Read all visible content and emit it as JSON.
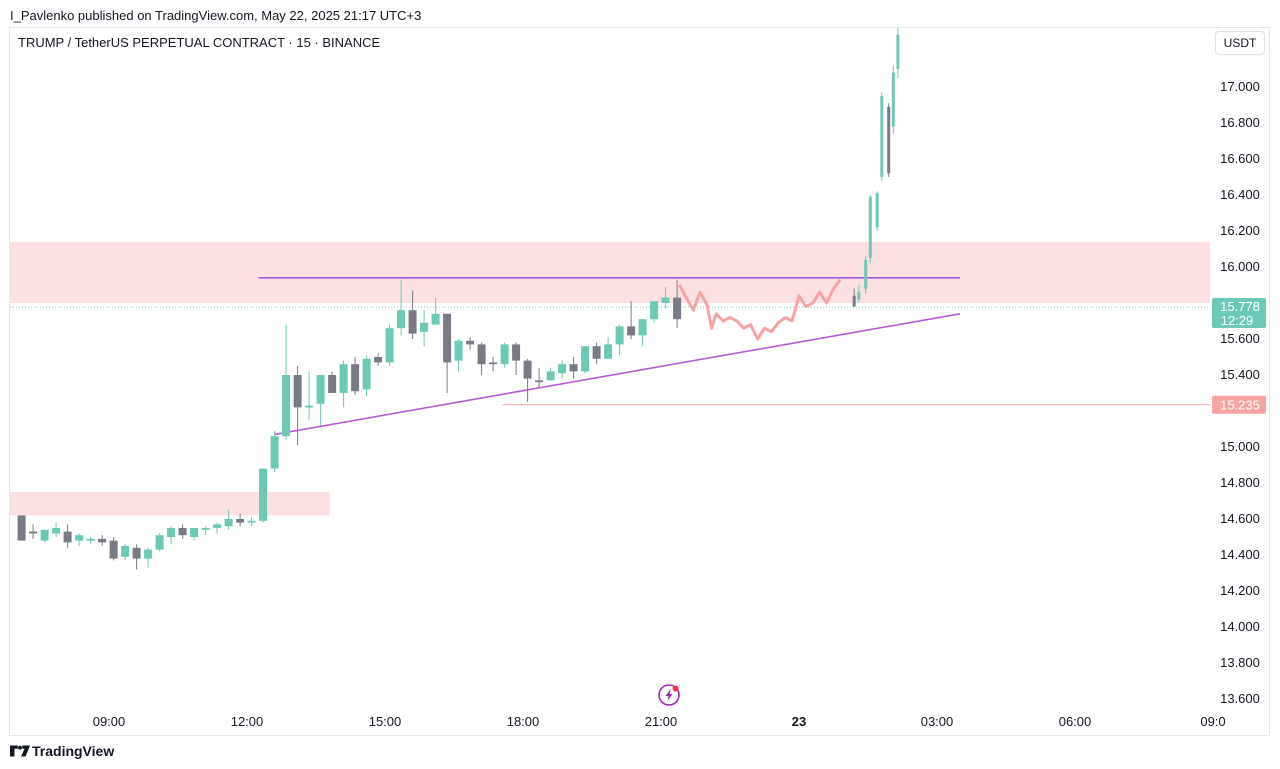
{
  "header": {
    "published": "I_Pavlenko published on TradingView.com, May 22, 2025 21:17 UTC+3",
    "symbol": "TRUMP / TetherUS PERPETUAL CONTRACT · 15 · BINANCE",
    "currency_button": "USDT"
  },
  "footer": {
    "brand": "TradingView"
  },
  "colors": {
    "up": "#6cc9b6",
    "down": "#787b86",
    "projection": "#f5a3a3",
    "zone": "#fde0e2",
    "trendline": "#b85cd6",
    "resistance": "#a05de0",
    "badge_price": "#6cc9b6",
    "badge_level": "#f5a3a3"
  },
  "chart_data": {
    "type": "candlestick",
    "ylim": [
      13.5,
      17.35
    ],
    "y_ticks": [
      "17.000",
      "16.800",
      "16.600",
      "16.400",
      "16.200",
      "16.000",
      "15.600",
      "15.400",
      "15.000",
      "14.800",
      "14.600",
      "14.400",
      "14.200",
      "14.000",
      "13.800",
      "13.600"
    ],
    "x_ticks": [
      "09:00",
      "12:00",
      "15:00",
      "18:00",
      "21:00",
      "23",
      "03:00",
      "06:00",
      "09:0"
    ],
    "last_price": {
      "value": "15.778",
      "countdown": "12:29"
    },
    "level_label": "15.235",
    "candles_hours": [
      [
        7.1,
        14.62,
        14.6,
        14.48,
        14.48
      ],
      [
        7.35,
        14.53,
        14.57,
        14.49,
        14.52
      ],
      [
        7.6,
        14.48,
        14.54,
        14.47,
        14.54
      ],
      [
        7.85,
        14.52,
        14.58,
        14.5,
        14.55
      ],
      [
        8.1,
        14.53,
        14.57,
        14.44,
        14.47
      ],
      [
        8.35,
        14.48,
        14.52,
        14.45,
        14.51
      ],
      [
        8.6,
        14.48,
        14.5,
        14.46,
        14.49
      ],
      [
        8.85,
        14.49,
        14.51,
        14.45,
        14.47
      ],
      [
        9.1,
        14.48,
        14.5,
        14.37,
        14.38
      ],
      [
        9.35,
        14.39,
        14.46,
        14.37,
        14.45
      ],
      [
        9.6,
        14.44,
        14.46,
        14.32,
        14.38
      ],
      [
        9.85,
        14.38,
        14.44,
        14.33,
        14.43
      ],
      [
        10.1,
        14.43,
        14.52,
        14.42,
        14.51
      ],
      [
        10.35,
        14.5,
        14.56,
        14.46,
        14.55
      ],
      [
        10.6,
        14.55,
        14.57,
        14.49,
        14.51
      ],
      [
        10.85,
        14.5,
        14.55,
        14.48,
        14.55
      ],
      [
        11.1,
        14.54,
        14.56,
        14.51,
        14.55
      ],
      [
        11.35,
        14.55,
        14.58,
        14.52,
        14.57
      ],
      [
        11.6,
        14.56,
        14.65,
        14.54,
        14.6
      ],
      [
        11.85,
        14.6,
        14.63,
        14.56,
        14.58
      ],
      [
        12.1,
        14.58,
        14.61,
        14.56,
        14.59
      ],
      [
        12.35,
        14.59,
        14.83,
        14.58,
        14.88
      ],
      [
        12.6,
        14.88,
        15.09,
        14.86,
        15.06
      ],
      [
        12.85,
        15.06,
        15.68,
        15.04,
        15.4
      ],
      [
        13.1,
        15.4,
        15.45,
        15.01,
        15.22
      ],
      [
        13.35,
        15.22,
        15.42,
        15.15,
        15.23
      ],
      [
        13.6,
        15.24,
        15.38,
        15.12,
        15.4
      ],
      [
        13.85,
        15.4,
        15.42,
        15.3,
        15.3
      ],
      [
        14.1,
        15.3,
        15.48,
        15.22,
        15.46
      ],
      [
        14.35,
        15.46,
        15.5,
        15.29,
        15.31
      ],
      [
        14.6,
        15.32,
        15.51,
        15.28,
        15.49
      ],
      [
        14.85,
        15.5,
        15.52,
        15.45,
        15.47
      ],
      [
        15.1,
        15.47,
        15.68,
        15.45,
        15.66
      ],
      [
        15.35,
        15.66,
        15.93,
        15.62,
        15.76
      ],
      [
        15.6,
        15.76,
        15.87,
        15.6,
        15.63
      ],
      [
        15.85,
        15.64,
        15.76,
        15.56,
        15.69
      ],
      [
        16.1,
        15.68,
        15.83,
        15.69,
        15.74
      ],
      [
        16.35,
        15.74,
        15.74,
        15.3,
        15.47
      ],
      [
        16.6,
        15.48,
        15.6,
        15.42,
        15.59
      ],
      [
        16.85,
        15.59,
        15.61,
        15.54,
        15.57
      ],
      [
        17.1,
        15.57,
        15.58,
        15.4,
        15.46
      ],
      [
        17.35,
        15.47,
        15.5,
        15.42,
        15.46
      ],
      [
        17.6,
        15.46,
        15.58,
        15.44,
        15.57
      ],
      [
        17.85,
        15.57,
        15.58,
        15.4,
        15.48
      ],
      [
        18.1,
        15.48,
        15.49,
        15.25,
        15.38
      ],
      [
        18.35,
        15.37,
        15.44,
        15.33,
        15.36
      ],
      [
        18.6,
        15.37,
        15.44,
        15.37,
        15.42
      ],
      [
        18.85,
        15.41,
        15.48,
        15.38,
        15.46
      ],
      [
        19.1,
        15.46,
        15.5,
        15.38,
        15.42
      ],
      [
        19.35,
        15.42,
        15.56,
        15.41,
        15.56
      ],
      [
        19.6,
        15.56,
        15.58,
        15.46,
        15.49
      ],
      [
        19.85,
        15.49,
        15.61,
        15.49,
        15.57
      ],
      [
        20.1,
        15.57,
        15.68,
        15.51,
        15.67
      ],
      [
        20.35,
        15.67,
        15.81,
        15.6,
        15.62
      ],
      [
        20.6,
        15.62,
        15.71,
        15.56,
        15.71
      ],
      [
        20.85,
        15.71,
        15.8,
        15.69,
        15.81
      ],
      [
        21.1,
        15.8,
        15.89,
        15.77,
        15.83
      ],
      [
        21.35,
        15.83,
        15.93,
        15.66,
        15.71
      ]
    ],
    "projection_hours": [
      [
        21.4,
        15.9
      ],
      [
        21.55,
        15.83
      ],
      [
        21.7,
        15.76
      ],
      [
        21.85,
        15.86
      ],
      [
        22.0,
        15.79
      ],
      [
        22.1,
        15.66
      ],
      [
        22.2,
        15.74
      ],
      [
        22.35,
        15.7
      ],
      [
        22.5,
        15.72
      ],
      [
        22.65,
        15.7
      ],
      [
        22.8,
        15.66
      ],
      [
        22.95,
        15.68
      ],
      [
        23.1,
        15.6
      ],
      [
        23.25,
        15.66
      ],
      [
        23.4,
        15.64
      ],
      [
        23.55,
        15.69
      ],
      [
        23.7,
        15.72
      ],
      [
        23.85,
        15.7
      ],
      [
        24.0,
        15.84
      ],
      [
        24.15,
        15.78
      ],
      [
        24.3,
        15.8
      ],
      [
        24.45,
        15.86
      ],
      [
        24.6,
        15.8
      ],
      [
        24.75,
        15.88
      ],
      [
        24.9,
        15.93
      ]
    ],
    "breakout_hours": [
      [
        25.2,
        15.84,
        15.88,
        15.78,
        15.78
      ],
      [
        25.3,
        15.82,
        15.9,
        15.8,
        15.86
      ],
      [
        25.45,
        15.88,
        16.06,
        15.85,
        16.04
      ],
      [
        25.55,
        16.05,
        16.4,
        16.02,
        16.39
      ],
      [
        25.7,
        16.22,
        16.42,
        16.2,
        16.41
      ],
      [
        25.8,
        16.5,
        16.97,
        16.48,
        16.95
      ],
      [
        25.95,
        16.89,
        16.91,
        16.5,
        16.52
      ],
      [
        26.05,
        16.78,
        17.12,
        16.74,
        17.08
      ],
      [
        26.15,
        17.1,
        17.33,
        17.05,
        17.29
      ]
    ],
    "zones": [
      {
        "x1": 6.0,
        "x2": 36.5,
        "y1": 15.8,
        "y2": 16.14
      },
      {
        "x1": 6.0,
        "x2": 13.8,
        "y1": 14.62,
        "y2": 14.75
      }
    ],
    "resistance": {
      "x1": 12.25,
      "x2": 27.5,
      "y": 15.94
    },
    "trendline": {
      "x1": 12.6,
      "y1": 15.07,
      "x2": 27.5,
      "y2": 15.74
    },
    "support_ray": {
      "x1": 17.55,
      "y": 15.235
    },
    "last_price_y": 15.778,
    "grid": false,
    "legend": "none"
  }
}
